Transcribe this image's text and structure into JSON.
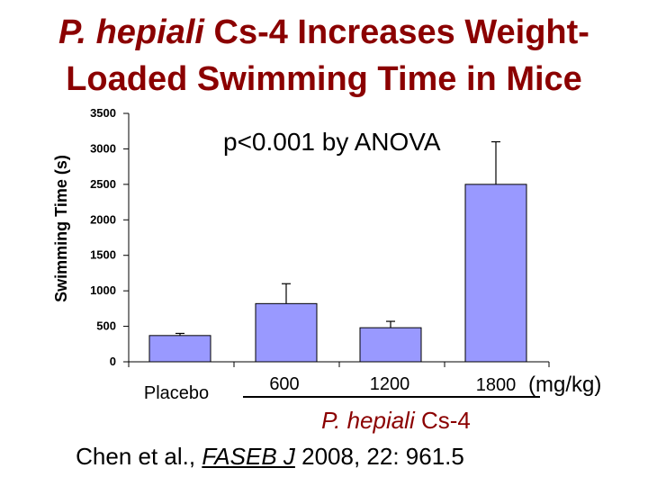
{
  "title": {
    "line1_italic": "P. hepiali",
    "line1_rest": " Cs-4 Increases Weight-",
    "line2": "Loaded Swimming Time in Mice"
  },
  "annotation": "p<0.001 by ANOVA",
  "x_group": {
    "italic": "P. hepiali",
    "rest": " Cs-4"
  },
  "unit": "(mg/kg)",
  "citation": {
    "authors": "Chen et al., ",
    "journal": "FASEB J",
    "rest": "  2008, 22: 961.5"
  },
  "colors": {
    "title": "#8b0000",
    "bar_fill": "#9999ff",
    "bar_stroke": "#000000"
  },
  "chart_data": {
    "type": "bar",
    "ylabel": "Swimming Time (s)",
    "ylim": [
      0,
      3500
    ],
    "yticks": [
      0,
      500,
      1000,
      1500,
      2000,
      2500,
      3000,
      3500
    ],
    "categories": [
      "Placebo",
      "600",
      "1200",
      "1800"
    ],
    "values": [
      370,
      820,
      480,
      2500
    ],
    "errors": [
      30,
      280,
      90,
      600
    ]
  }
}
